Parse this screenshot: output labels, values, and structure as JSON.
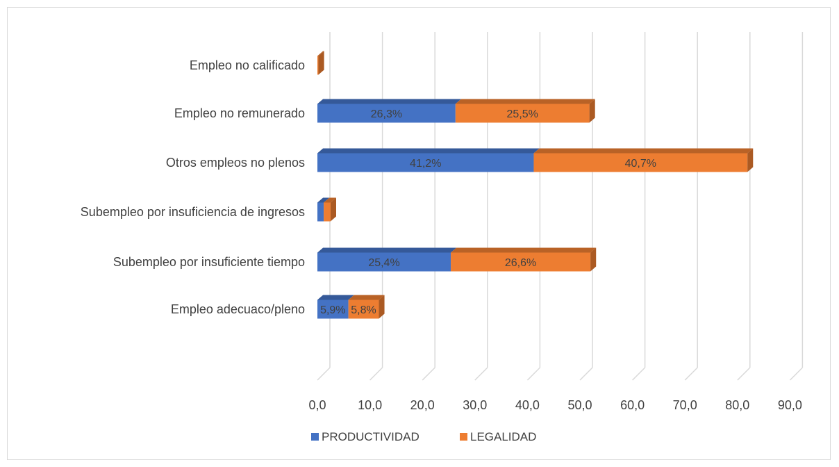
{
  "chart_data": {
    "type": "bar",
    "orientation": "horizontal",
    "stacked": true,
    "style": "3d",
    "categories": [
      "Empleo adecuaco/pleno",
      "Subempleo por insuficiente tiempo",
      "Subempleo por insuficiencia de ingresos",
      "Otros empleos no plenos",
      "Empleo no remunerado",
      "Empleo no calificado"
    ],
    "series": [
      {
        "name": "PRODUCTIVIDAD",
        "color": "#4472c4",
        "values": [
          5.9,
          25.4,
          1.2,
          41.2,
          26.3,
          0.0
        ],
        "labels": [
          "5,9%",
          "25,4%",
          "",
          "41,2%",
          "26,3%",
          ""
        ]
      },
      {
        "name": "LEGALIDAD",
        "color": "#ed7d31",
        "values": [
          5.8,
          26.6,
          1.3,
          40.7,
          25.5,
          0.2
        ],
        "labels": [
          "5,8%",
          "26,6%",
          "",
          "40,7%",
          "25,5%",
          ""
        ]
      }
    ],
    "x_ticks": [
      "0,0",
      "10,0",
      "20,0",
      "30,0",
      "40,0",
      "50,0",
      "60,0",
      "70,0",
      "80,0",
      "90,0"
    ],
    "xlim": [
      0,
      90
    ],
    "grid": true,
    "legend_position": "bottom"
  }
}
